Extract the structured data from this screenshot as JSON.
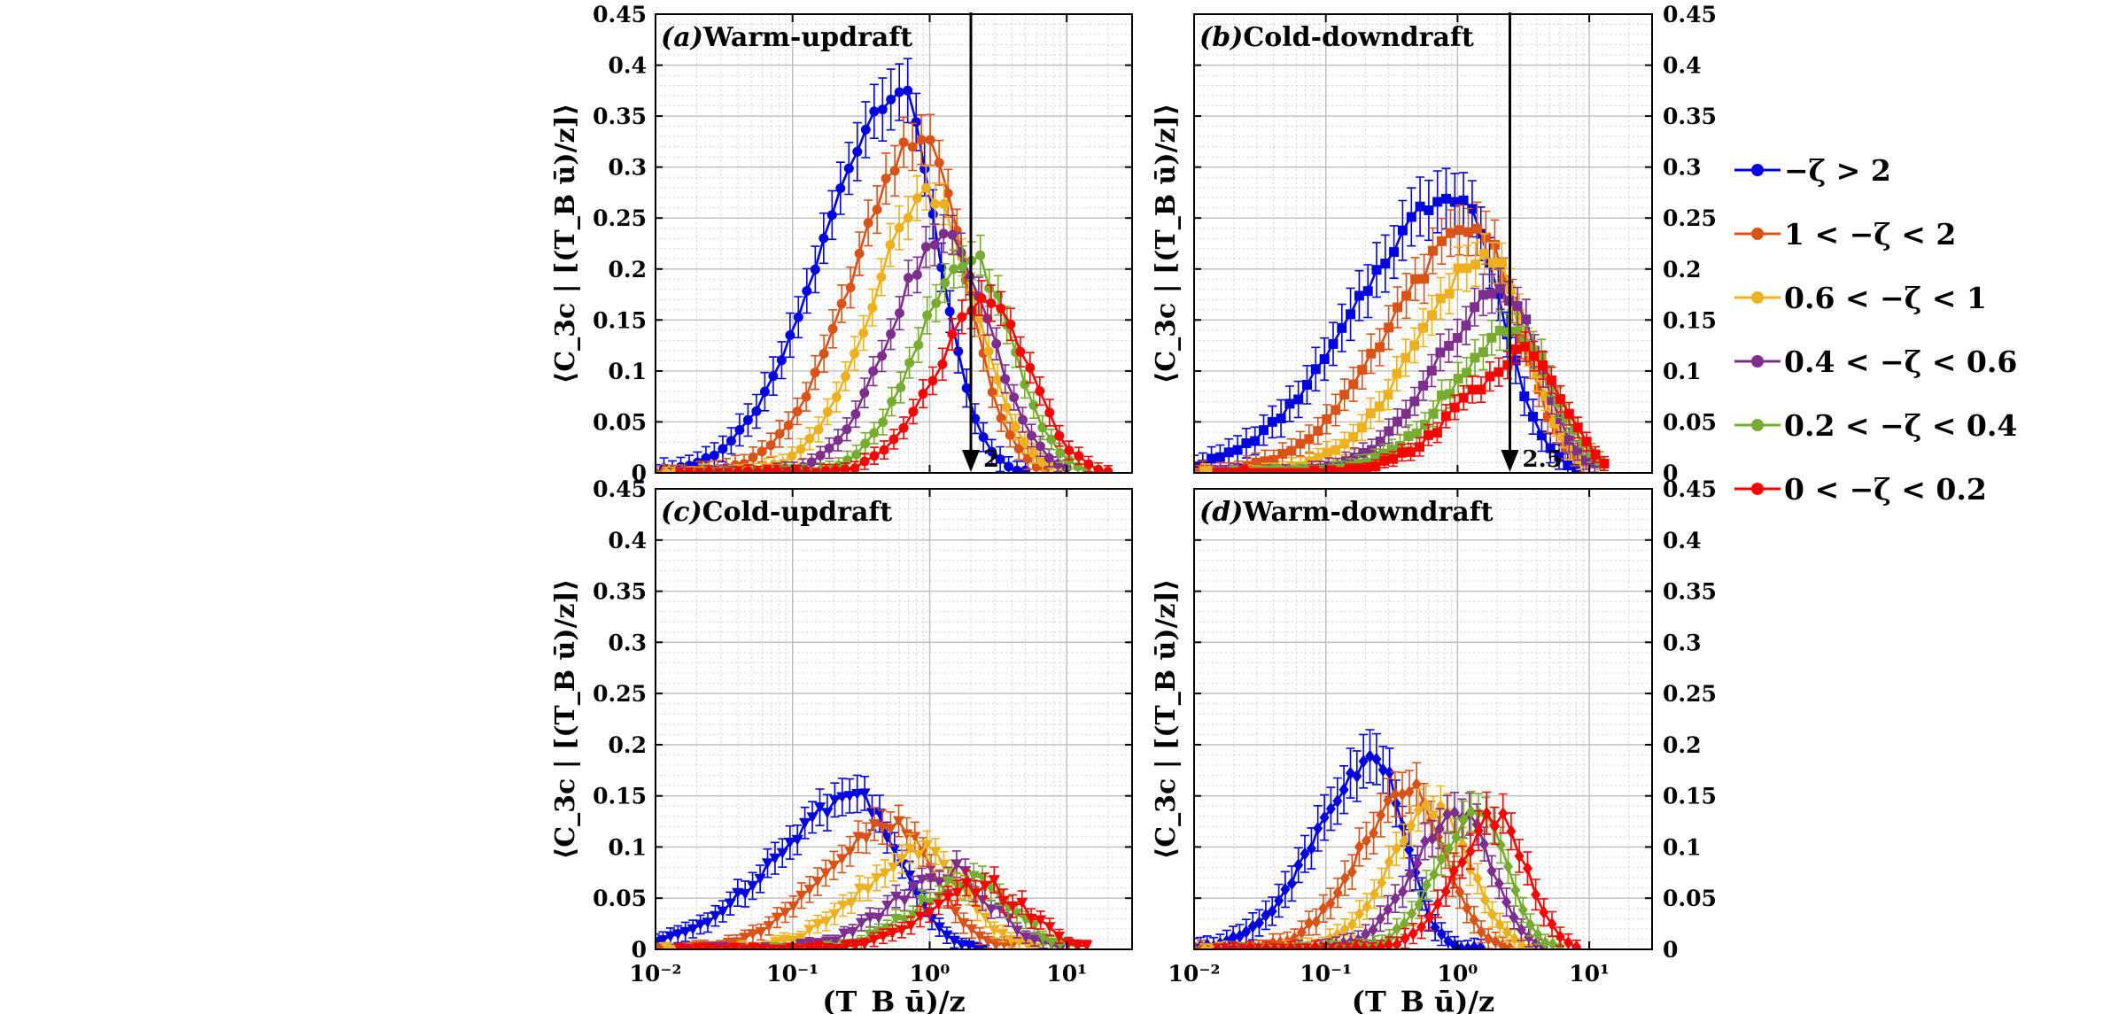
{
  "chart_data": {
    "type": "line",
    "xlabel": "(T_B ū)/z",
    "ylabel": "⟨C_3c | [(T_B ū)/z]⟩",
    "x_scale": "log",
    "xlim": [
      0.01,
      30
    ],
    "ylim": [
      0,
      0.45
    ],
    "x_ticks": [
      0.01,
      0.1,
      1,
      10
    ],
    "x_tick_labels": [
      "10⁻²",
      "10⁻¹",
      "10⁰",
      "10¹"
    ],
    "y_ticks": [
      0,
      0.05,
      0.1,
      0.15,
      0.2,
      0.25,
      0.3,
      0.35,
      0.4,
      0.45
    ],
    "y_tick_labels": [
      "0",
      "0.05",
      "0.1",
      "0.15",
      "0.2",
      "0.25",
      "0.3",
      "0.35",
      "0.4",
      "0.45"
    ],
    "grid": true,
    "legend_position": "right",
    "legend": [
      {
        "label": "−ζ > 2",
        "color": "#0000e0"
      },
      {
        "label": "1 < −ζ < 2",
        "color": "#d95319"
      },
      {
        "label": "0.6 < −ζ < 1",
        "color": "#edb120"
      },
      {
        "label": "0.4 < −ζ < 0.6",
        "color": "#7e2f8e"
      },
      {
        "label": "0.2 < −ζ < 0.4",
        "color": "#77ac30"
      },
      {
        "label": "0 < −ζ < 0.2",
        "color": "#ff0000"
      }
    ],
    "panels": [
      {
        "id": "a",
        "letter": "(a)",
        "title": "Warm-updraft",
        "marker": "circle",
        "annotation": {
          "label": "2",
          "x": 2
        },
        "series": [
          {
            "name": "−ζ > 2",
            "peak_x": 0.6,
            "peak_y": 0.375,
            "left_width": 0.55,
            "right_width": 0.28,
            "err": 0.03,
            "x_start": 0.01,
            "x_end": 5.0
          },
          {
            "name": "1 < −ζ < 2",
            "peak_x": 0.9,
            "peak_y": 0.33,
            "left_width": 0.5,
            "right_width": 0.3,
            "err": 0.025,
            "x_start": 0.01,
            "x_end": 7.0
          },
          {
            "name": "0.6 < −ζ < 1",
            "peak_x": 1.0,
            "peak_y": 0.275,
            "left_width": 0.42,
            "right_width": 0.33,
            "err": 0.022,
            "x_start": 0.012,
            "x_end": 9.0
          },
          {
            "name": "0.4 < −ζ < 0.6",
            "peak_x": 1.3,
            "peak_y": 0.23,
            "left_width": 0.4,
            "right_width": 0.33,
            "err": 0.02,
            "x_start": 0.015,
            "x_end": 10.0
          },
          {
            "name": "0.2 < −ζ < 0.4",
            "peak_x": 2.0,
            "peak_y": 0.21,
            "left_width": 0.38,
            "right_width": 0.3,
            "err": 0.02,
            "x_start": 0.02,
            "x_end": 14.0
          },
          {
            "name": "0 < −ζ < 0.2",
            "peak_x": 2.7,
            "peak_y": 0.165,
            "left_width": 0.38,
            "right_width": 0.3,
            "err": 0.018,
            "x_start": 0.015,
            "x_end": 20.0
          }
        ]
      },
      {
        "id": "b",
        "letter": "(b)",
        "title": "Cold-downdraft",
        "marker": "square",
        "annotation": {
          "label": "2.5",
          "x": 2.5
        },
        "series": [
          {
            "name": "−ζ > 2",
            "peak_x": 1.0,
            "peak_y": 0.275,
            "left_width": 0.75,
            "right_width": 0.32,
            "err": 0.03,
            "x_start": 0.01,
            "x_end": 8.0
          },
          {
            "name": "1 < −ζ < 2",
            "peak_x": 1.4,
            "peak_y": 0.24,
            "left_width": 0.65,
            "right_width": 0.32,
            "err": 0.025,
            "x_start": 0.01,
            "x_end": 9.0
          },
          {
            "name": "0.6 < −ζ < 1",
            "peak_x": 1.7,
            "peak_y": 0.21,
            "left_width": 0.55,
            "right_width": 0.3,
            "err": 0.022,
            "x_start": 0.012,
            "x_end": 10.0
          },
          {
            "name": "0.4 < −ζ < 0.6",
            "peak_x": 2.2,
            "peak_y": 0.175,
            "left_width": 0.5,
            "right_width": 0.28,
            "err": 0.02,
            "x_start": 0.015,
            "x_end": 11.0
          },
          {
            "name": "0.2 < −ζ < 0.4",
            "peak_x": 2.8,
            "peak_y": 0.135,
            "left_width": 0.5,
            "right_width": 0.28,
            "err": 0.018,
            "x_start": 0.02,
            "x_end": 12.0
          },
          {
            "name": "0 < −ζ < 0.2",
            "peak_x": 3.5,
            "peak_y": 0.115,
            "left_width": 0.5,
            "right_width": 0.26,
            "err": 0.015,
            "x_start": 0.015,
            "x_end": 13.0
          }
        ]
      },
      {
        "id": "c",
        "letter": "(c)",
        "title": "Cold-updraft",
        "marker": "triangle-down",
        "annotation": null,
        "series": [
          {
            "name": "−ζ > 2",
            "peak_x": 0.3,
            "peak_y": 0.15,
            "left_width": 0.6,
            "right_width": 0.3,
            "err": 0.018,
            "x_start": 0.01,
            "x_end": 2.5
          },
          {
            "name": "1 < −ζ < 2",
            "peak_x": 0.55,
            "peak_y": 0.12,
            "left_width": 0.5,
            "right_width": 0.3,
            "err": 0.016,
            "x_start": 0.01,
            "x_end": 4.0
          },
          {
            "name": "0.6 < −ζ < 1",
            "peak_x": 0.9,
            "peak_y": 0.095,
            "left_width": 0.45,
            "right_width": 0.3,
            "err": 0.014,
            "x_start": 0.012,
            "x_end": 6.0
          },
          {
            "name": "0.4 < −ζ < 0.6",
            "peak_x": 1.4,
            "peak_y": 0.075,
            "left_width": 0.42,
            "right_width": 0.3,
            "err": 0.012,
            "x_start": 0.015,
            "x_end": 9.0
          },
          {
            "name": "0.2 < −ζ < 0.4",
            "peak_x": 2.0,
            "peak_y": 0.065,
            "left_width": 0.4,
            "right_width": 0.3,
            "err": 0.012,
            "x_start": 0.02,
            "x_end": 12.0
          },
          {
            "name": "0 < −ζ < 0.2",
            "peak_x": 2.6,
            "peak_y": 0.06,
            "left_width": 0.4,
            "right_width": 0.3,
            "err": 0.012,
            "x_start": 0.015,
            "x_end": 14.0
          }
        ]
      },
      {
        "id": "d",
        "letter": "(d)",
        "title": "Warm-downdraft",
        "marker": "diamond",
        "annotation": null,
        "series": [
          {
            "name": "−ζ > 2",
            "peak_x": 0.24,
            "peak_y": 0.185,
            "left_width": 0.45,
            "right_width": 0.22,
            "err": 0.025,
            "x_start": 0.01,
            "x_end": 1.5
          },
          {
            "name": "1 < −ζ < 2",
            "peak_x": 0.45,
            "peak_y": 0.155,
            "left_width": 0.4,
            "right_width": 0.25,
            "err": 0.022,
            "x_start": 0.01,
            "x_end": 2.5
          },
          {
            "name": "0.6 < −ζ < 1",
            "peak_x": 0.7,
            "peak_y": 0.14,
            "left_width": 0.35,
            "right_width": 0.25,
            "err": 0.02,
            "x_start": 0.012,
            "x_end": 3.5
          },
          {
            "name": "0.4 < −ζ < 0.6",
            "peak_x": 1.0,
            "peak_y": 0.135,
            "left_width": 0.33,
            "right_width": 0.25,
            "err": 0.02,
            "x_start": 0.015,
            "x_end": 4.5
          },
          {
            "name": "0.2 < −ζ < 0.4",
            "peak_x": 1.4,
            "peak_y": 0.135,
            "left_width": 0.3,
            "right_width": 0.22,
            "err": 0.02,
            "x_start": 0.02,
            "x_end": 6.0
          },
          {
            "name": "0 < −ζ < 0.2",
            "peak_x": 2.0,
            "peak_y": 0.13,
            "left_width": 0.3,
            "right_width": 0.22,
            "err": 0.02,
            "x_start": 0.015,
            "x_end": 8.0
          }
        ]
      }
    ]
  }
}
